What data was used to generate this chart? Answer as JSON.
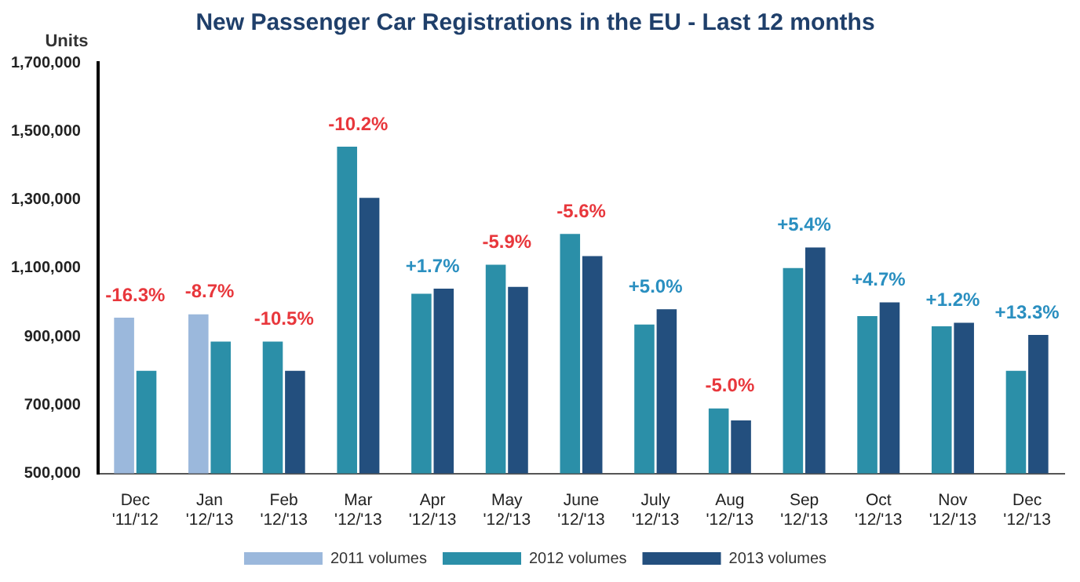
{
  "chart_data": {
    "type": "bar",
    "title": "New Passenger Car Registrations in the EU - Last 12 months",
    "ylabel": "Units",
    "categories": [
      "Dec\n'11/'12",
      "Jan\n'12/'13",
      "Feb\n'12/'13",
      "Mar\n'12/'13",
      "Apr\n'12/'13",
      "May\n'12/'13",
      "June\n'12/'13",
      "July\n'12/'13",
      "Aug\n'12/'13",
      "Sep\n'12/'13",
      "Oct\n'12/'13",
      "Nov\n'12/'13",
      "Dec\n'12/'13"
    ],
    "series": [
      {
        "name": "2011 volumes",
        "color": "#9bb8dc",
        "values": [
          955000,
          965000,
          null,
          null,
          null,
          null,
          null,
          null,
          null,
          null,
          null,
          null,
          null
        ]
      },
      {
        "name": "2012 volumes",
        "color": "#2b8fa8",
        "values": [
          800000,
          885000,
          885000,
          1455000,
          1025000,
          1110000,
          1200000,
          935000,
          690000,
          1100000,
          960000,
          930000,
          800000
        ]
      },
      {
        "name": "2013 volumes",
        "color": "#234f7e",
        "values": [
          null,
          null,
          800000,
          1305000,
          1040000,
          1045000,
          1135000,
          980000,
          655000,
          1160000,
          1000000,
          940000,
          905000
        ]
      }
    ],
    "ylim": [
      500000,
      1700000
    ],
    "yticks": [
      {
        "value": 500000,
        "label": "500,000"
      },
      {
        "value": 700000,
        "label": "700,000"
      },
      {
        "value": 900000,
        "label": "900,000"
      },
      {
        "value": 1100000,
        "label": "1,100,000"
      },
      {
        "value": 1300000,
        "label": "1,300,000"
      },
      {
        "value": 1500000,
        "label": "1,500,000"
      },
      {
        "value": 1700000,
        "label": "1,700,000"
      }
    ],
    "grid": false,
    "legend": "bottom",
    "annotations": [
      {
        "text": "-16.3%",
        "x": "Dec\n'11/'12",
        "y": 955000
      },
      {
        "text": "-8.7%",
        "x": "Jan\n'12/'13",
        "y": 965000
      },
      {
        "text": "-10.5%",
        "x": "Feb\n'12/'13",
        "y": 885000
      },
      {
        "text": "-10.2%",
        "x": "Mar\n'12/'13",
        "y": 1455000
      },
      {
        "text": "+1.7%",
        "x": "Apr\n'12/'13",
        "y": 1040000
      },
      {
        "text": "-5.9%",
        "x": "May\n'12/'13",
        "y": 1110000
      },
      {
        "text": "-5.6%",
        "x": "June\n'12/'13",
        "y": 1200000
      },
      {
        "text": "+5.0%",
        "x": "July\n'12/'13",
        "y": 980000
      },
      {
        "text": "-5.0%",
        "x": "Aug\n'12/'13",
        "y": 690000
      },
      {
        "text": "+5.4%",
        "x": "Sep\n'12/'13",
        "y": 1160000
      },
      {
        "text": "+4.7%",
        "x": "Oct\n'12/'13",
        "y": 1000000
      },
      {
        "text": "+1.2%",
        "x": "Nov\n'12/'13",
        "y": 940000
      },
      {
        "text": "+13.3%",
        "x": "Dec\n'12/'13",
        "y": 905000
      }
    ]
  }
}
